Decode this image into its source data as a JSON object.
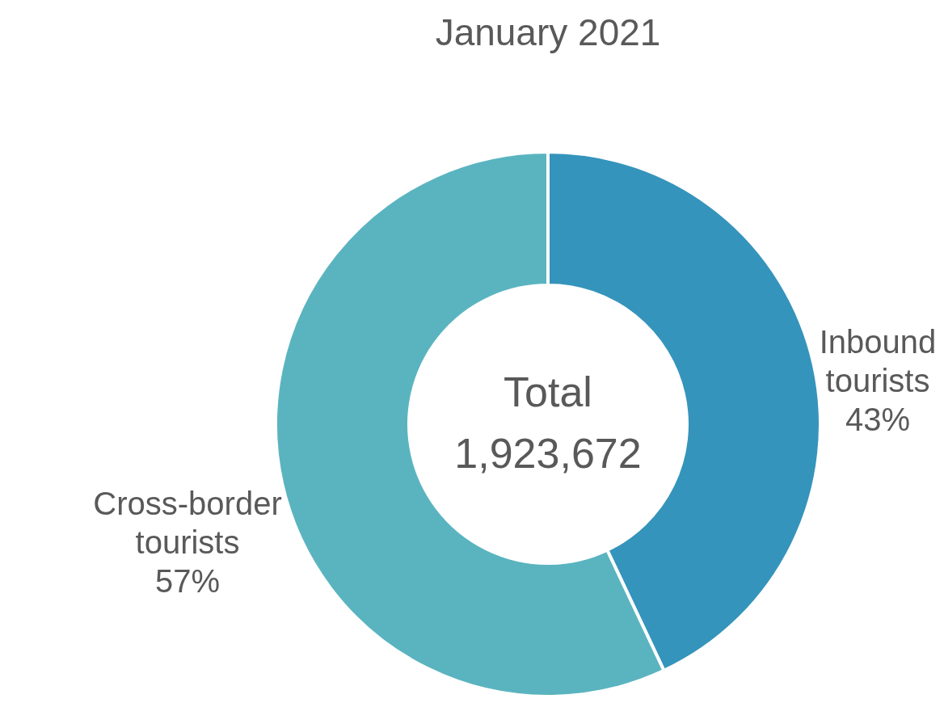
{
  "chart_data": {
    "type": "donut",
    "title": "January 2021",
    "categories": [
      "Inbound tourists",
      "Cross-border tourists"
    ],
    "values": [
      43,
      57
    ],
    "colors": [
      "#3594bb",
      "#5ab4c0"
    ],
    "value_labels": [
      "43%",
      "57%"
    ],
    "annotations": [
      "Total",
      "1,923,672"
    ]
  }
}
